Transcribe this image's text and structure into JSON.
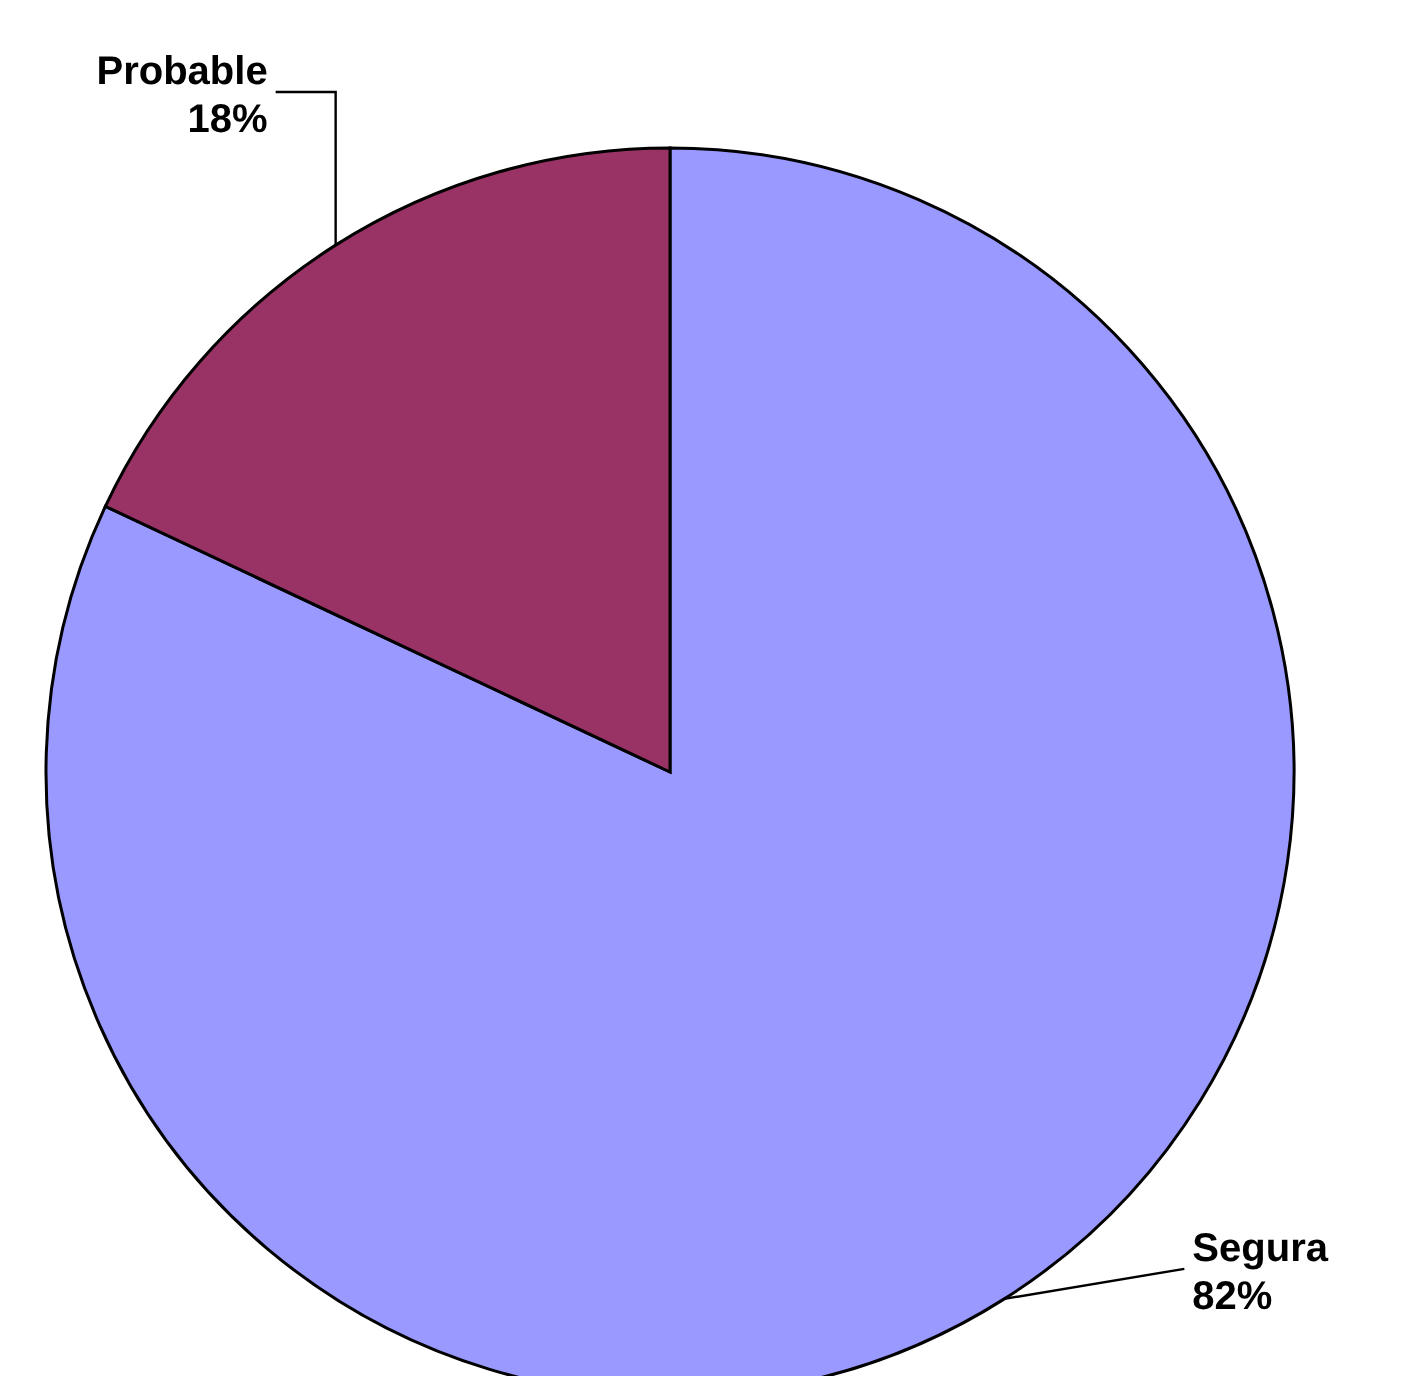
{
  "chart_data": {
    "type": "pie",
    "categories": [
      "Segura",
      "Probable"
    ],
    "values": [
      82,
      18
    ],
    "colors": [
      "#9999ff",
      "#993366"
    ],
    "value_labels": [
      "82%",
      "18%"
    ]
  }
}
